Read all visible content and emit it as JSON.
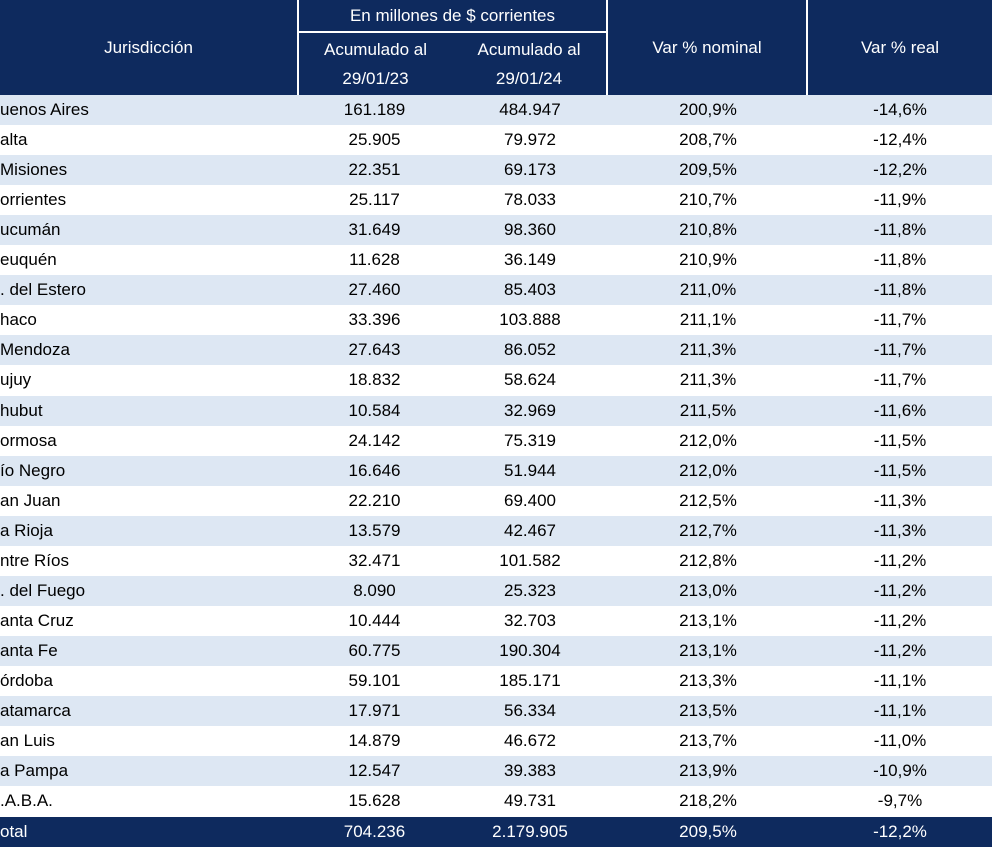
{
  "header": {
    "jurisdiction": "Jurisdicción",
    "group": "En millones de $ corrientes",
    "col_2023": [
      "Acumulado al",
      "29/01/23"
    ],
    "col_2024": [
      "Acumulado al",
      "29/01/24"
    ],
    "nominal": "Var % nominal",
    "real": "Var % real"
  },
  "table": {
    "rows": [
      [
        "uenos Aires",
        "161.189",
        "484.947",
        "200,9%",
        "-14,6%"
      ],
      [
        "alta",
        "25.905",
        "79.972",
        "208,7%",
        "-12,4%"
      ],
      [
        "Misiones",
        "22.351",
        "69.173",
        "209,5%",
        "-12,2%"
      ],
      [
        "orrientes",
        "25.117",
        "78.033",
        "210,7%",
        "-11,9%"
      ],
      [
        "ucumán",
        "31.649",
        "98.360",
        "210,8%",
        "-11,8%"
      ],
      [
        "euquén",
        "11.628",
        "36.149",
        "210,9%",
        "-11,8%"
      ],
      [
        ". del Estero",
        "27.460",
        "85.403",
        "211,0%",
        "-11,8%"
      ],
      [
        "haco",
        "33.396",
        "103.888",
        "211,1%",
        "-11,7%"
      ],
      [
        "Mendoza",
        "27.643",
        "86.052",
        "211,3%",
        "-11,7%"
      ],
      [
        "ujuy",
        "18.832",
        "58.624",
        "211,3%",
        "-11,7%"
      ],
      [
        "hubut",
        "10.584",
        "32.969",
        "211,5%",
        "-11,6%"
      ],
      [
        "ormosa",
        "24.142",
        "75.319",
        "212,0%",
        "-11,5%"
      ],
      [
        "ío Negro",
        "16.646",
        "51.944",
        "212,0%",
        "-11,5%"
      ],
      [
        "an Juan",
        "22.210",
        "69.400",
        "212,5%",
        "-11,3%"
      ],
      [
        "a Rioja",
        "13.579",
        "42.467",
        "212,7%",
        "-11,3%"
      ],
      [
        "ntre Ríos",
        "32.471",
        "101.582",
        "212,8%",
        "-11,2%"
      ],
      [
        ". del Fuego",
        "8.090",
        "25.323",
        "213,0%",
        "-11,2%"
      ],
      [
        "anta Cruz",
        "10.444",
        "32.703",
        "213,1%",
        "-11,2%"
      ],
      [
        "anta Fe",
        "60.775",
        "190.304",
        "213,1%",
        "-11,2%"
      ],
      [
        "órdoba",
        "59.101",
        "185.171",
        "213,3%",
        "-11,1%"
      ],
      [
        "atamarca",
        "17.971",
        "56.334",
        "213,5%",
        "-11,1%"
      ],
      [
        "an Luis",
        "14.879",
        "46.672",
        "213,7%",
        "-11,0%"
      ],
      [
        "a Pampa",
        "12.547",
        "39.383",
        "213,9%",
        "-10,9%"
      ],
      [
        ".A.B.A.",
        "15.628",
        "49.731",
        "218,2%",
        "-9,7%"
      ]
    ],
    "total": [
      "otal",
      "704.236",
      "2.179.905",
      "209,5%",
      "-12,2%"
    ]
  }
}
